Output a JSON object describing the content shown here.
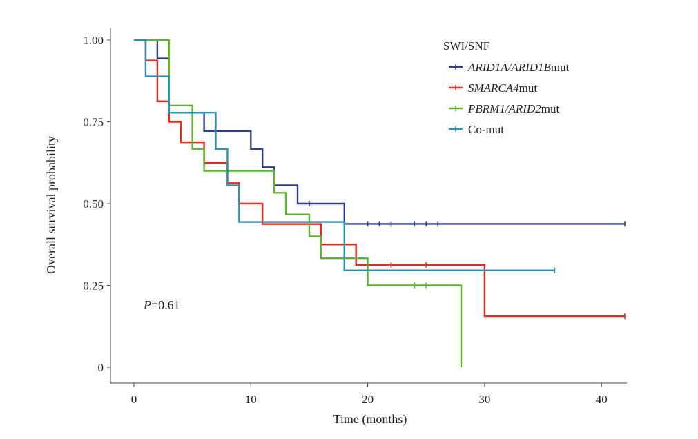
{
  "chart_data": {
    "type": "line",
    "step": true,
    "xlabel": "Time (months)",
    "ylabel": "Overall survival probability",
    "xlim": [
      0,
      42
    ],
    "ylim": [
      0,
      1
    ],
    "x_ticks": [
      "0",
      "10",
      "20",
      "30",
      "40"
    ],
    "y_ticks": [
      "0",
      "0.25",
      "0.50",
      "0.75",
      "1.00"
    ],
    "grid": false,
    "legend": {
      "title": "SWI/SNF",
      "position": "top-right",
      "entries": [
        {
          "label_italic": "ARID1A/ARID1B",
          "label_suffix": "mut",
          "color": "#2f3e8c"
        },
        {
          "label_italic": "SMARCA4",
          "label_suffix": "mut",
          "color": "#e8291c"
        },
        {
          "label_italic": "PBRM1/ARID2",
          "label_suffix": "mut",
          "color": "#5cb531"
        },
        {
          "label_italic": "",
          "label_suffix": "Co-mut",
          "color": "#2e8fb0"
        }
      ]
    },
    "annotation": {
      "italic": "P",
      "rest": "=0.61"
    },
    "series": [
      {
        "name": "ARID1A/ARID1Bmut",
        "color": "#2f3e8c",
        "x": [
          0,
          2,
          3,
          6,
          10,
          11,
          12,
          14,
          18,
          42
        ],
        "y": [
          1.0,
          0.944,
          0.778,
          0.722,
          0.667,
          0.611,
          0.556,
          0.5,
          0.438,
          0.438
        ],
        "censor_x": [
          15,
          20,
          21,
          22,
          24,
          25,
          26,
          42
        ]
      },
      {
        "name": "SMARCA4mut",
        "color": "#e8291c",
        "x": [
          0,
          1,
          2,
          3,
          4,
          6,
          8,
          9,
          11,
          16,
          19,
          30,
          42
        ],
        "y": [
          1.0,
          0.9375,
          0.8125,
          0.75,
          0.6875,
          0.625,
          0.5625,
          0.5,
          0.4375,
          0.375,
          0.3125,
          0.156,
          0.156
        ],
        "censor_x": [
          22,
          25,
          42
        ]
      },
      {
        "name": "PBRM1/ARID2mut",
        "color": "#5cb531",
        "x": [
          0,
          2,
          3,
          5,
          6,
          12,
          13,
          15,
          16,
          20,
          28,
          28
        ],
        "y": [
          1.0,
          1.0,
          0.8,
          0.667,
          0.6,
          0.533,
          0.467,
          0.4,
          0.333,
          0.25,
          0.25,
          0.0
        ],
        "censor_x": [
          24,
          25
        ]
      },
      {
        "name": "Co-mut",
        "color": "#2e8fb0",
        "x": [
          0,
          1,
          3,
          7,
          8,
          9,
          18,
          36
        ],
        "y": [
          1.0,
          0.889,
          0.778,
          0.667,
          0.556,
          0.444,
          0.296,
          0.296
        ],
        "censor_x": [
          36
        ]
      }
    ]
  }
}
